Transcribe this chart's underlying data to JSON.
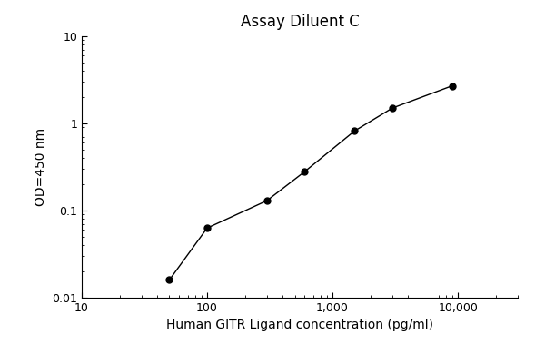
{
  "title": "Assay Diluent C",
  "xlabel": "Human GITR Ligand concentration (pg/ml)",
  "ylabel": "OD=450 nm",
  "x_values": [
    50,
    100,
    300,
    600,
    1500,
    3000,
    9000
  ],
  "y_values": [
    0.016,
    0.063,
    0.13,
    0.28,
    0.82,
    1.5,
    2.7
  ],
  "xlim": [
    10,
    30000
  ],
  "ylim": [
    0.01,
    10
  ],
  "x_ticks": [
    10,
    100,
    1000,
    10000
  ],
  "x_tick_labels": [
    "10",
    "100",
    "1,000",
    "10,000"
  ],
  "y_ticks": [
    0.01,
    0.1,
    1,
    10
  ],
  "y_tick_labels": [
    "0.01",
    "0.1",
    "1",
    "10"
  ],
  "line_color": "#000000",
  "marker_color": "#000000",
  "marker_style": "o",
  "marker_size": 5,
  "line_width": 1.0,
  "background_color": "#ffffff",
  "title_fontsize": 12,
  "label_fontsize": 10,
  "tick_fontsize": 9
}
